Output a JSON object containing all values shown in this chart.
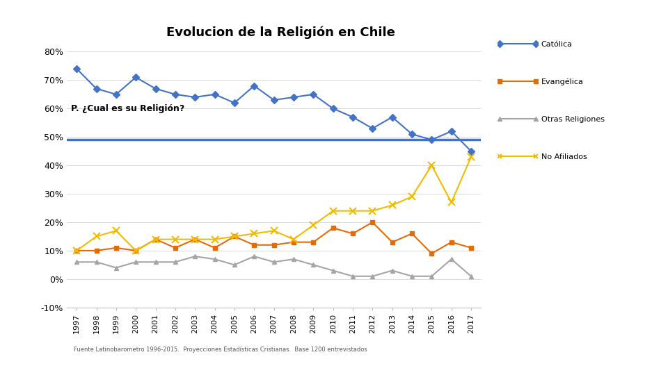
{
  "title": "Evolucion de la Religión en Chile",
  "subtitle": "P. ¿Cual es su Religión?",
  "footnote": "Fuente Latinobarometro 1996-2015.  Proyecciones Estadísticas Cristianas.  Base 1200 entrevistados",
  "years": [
    1997,
    1998,
    1999,
    2000,
    2001,
    2002,
    2003,
    2004,
    2005,
    2006,
    2007,
    2008,
    2009,
    2010,
    2011,
    2012,
    2013,
    2014,
    2015,
    2016,
    2017
  ],
  "catolica": [
    0.74,
    0.67,
    0.65,
    0.71,
    0.67,
    0.65,
    0.64,
    0.65,
    0.62,
    0.68,
    0.63,
    0.64,
    0.65,
    0.6,
    0.57,
    0.53,
    0.57,
    0.51,
    0.49,
    0.52,
    0.45
  ],
  "evangelica": [
    0.1,
    0.1,
    0.11,
    0.1,
    0.14,
    0.11,
    0.14,
    0.11,
    0.15,
    0.12,
    0.12,
    0.13,
    0.13,
    0.18,
    0.16,
    0.2,
    0.13,
    0.16,
    0.09,
    0.13,
    0.11
  ],
  "otras": [
    0.06,
    0.06,
    0.04,
    0.06,
    0.06,
    0.06,
    0.08,
    0.07,
    0.05,
    0.08,
    0.06,
    0.07,
    0.05,
    0.03,
    0.01,
    0.01,
    0.03,
    0.01,
    0.01,
    0.07,
    0.01
  ],
  "no_afiliados": [
    0.1,
    0.15,
    0.17,
    0.1,
    0.14,
    0.14,
    0.14,
    0.14,
    0.15,
    0.16,
    0.17,
    0.14,
    0.19,
    0.24,
    0.24,
    0.24,
    0.26,
    0.29,
    0.4,
    0.27,
    0.43
  ],
  "hline_y": 0.49,
  "hline_color": "#4472C4",
  "catolica_color": "#4472C4",
  "evangelica_color": "#E36C09",
  "otras_color": "#A5A5A5",
  "no_afiliados_color": "#F0BC00",
  "ylim_min": -0.1,
  "ylim_max": 0.85,
  "yticks": [
    -0.1,
    0.0,
    0.1,
    0.2,
    0.3,
    0.4,
    0.5,
    0.6,
    0.7,
    0.8
  ],
  "yticklabels": [
    "-10%",
    "0%",
    "10%",
    "20%",
    "30%",
    "40%",
    "50%",
    "60%",
    "70%",
    "80%"
  ],
  "background_color": "#FFFFFF",
  "legend_labels": [
    "Católica",
    "Evangélica",
    "Otras Religiones",
    "No Afiliados"
  ]
}
